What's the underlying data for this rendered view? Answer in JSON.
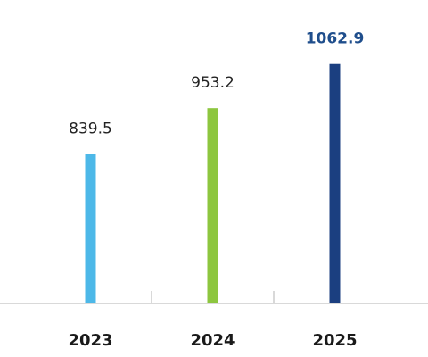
{
  "chart_data": {
    "type": "bar",
    "categories": [
      "2023",
      "2024",
      "2025"
    ],
    "values": [
      839.5,
      953.2,
      1062.9
    ],
    "colors": [
      "#4db8e8",
      "#8dc63f",
      "#1b3f80"
    ],
    "label_colors": [
      "#222222",
      "#222222",
      "#1f4e8c"
    ],
    "ylim": [
      470,
      1100
    ]
  }
}
